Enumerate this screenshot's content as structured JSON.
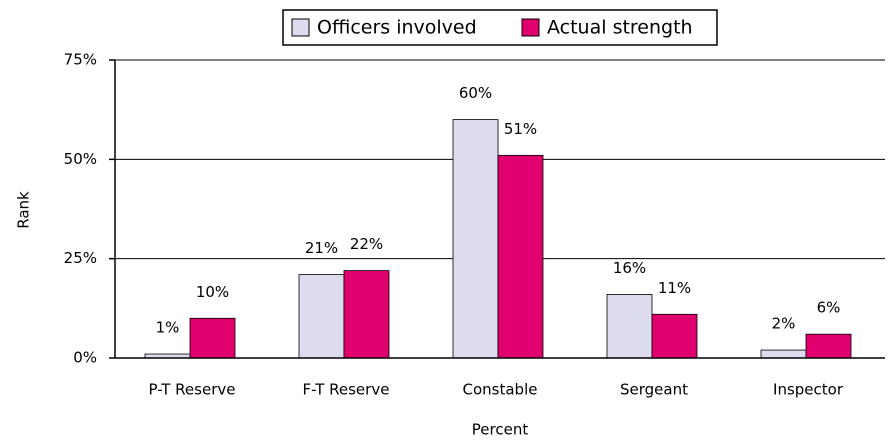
{
  "chart_data": {
    "type": "bar",
    "x_label": "Percent",
    "y_label": "Rank",
    "categories": [
      "P-T Reserve",
      "F-T Reserve",
      "Constable",
      "Sergeant",
      "Inspector"
    ],
    "series": [
      {
        "name": "Officers involved",
        "color": "#dcdcee",
        "values": [
          1,
          21,
          60,
          16,
          2
        ],
        "value_labels": [
          "1%",
          "21%",
          "60%",
          "16%",
          "2%"
        ]
      },
      {
        "name": "Actual strength",
        "color": "#e0006e",
        "values": [
          10,
          22,
          51,
          11,
          6
        ],
        "value_labels": [
          "10%",
          "22%",
          "51%",
          "11%",
          "6%"
        ]
      }
    ],
    "ylim": [
      0,
      75
    ],
    "yticks": [
      {
        "value": 0,
        "label": "0%"
      },
      {
        "value": 25,
        "label": "25%"
      },
      {
        "value": 50,
        "label": "50%"
      },
      {
        "value": 75,
        "label": "75%"
      }
    ],
    "grid": true,
    "legend": "top"
  }
}
